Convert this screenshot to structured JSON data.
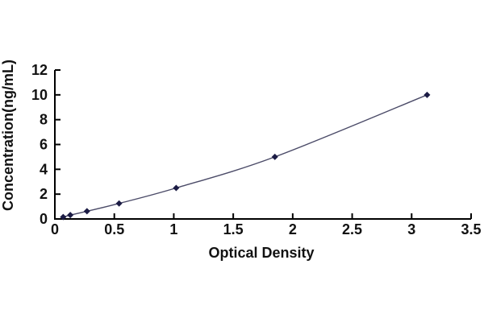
{
  "chart_data": {
    "type": "line",
    "subtype": "xy-scatter-with-smooth-line-and-markers",
    "title": "",
    "xlabel": "Optical Density",
    "ylabel": "Concentration(ng/mL)",
    "xlim": [
      0,
      3.5
    ],
    "ylim": [
      0,
      12
    ],
    "grid": false,
    "legend": "none",
    "x_ticks": [
      0,
      0.5,
      1,
      1.5,
      2,
      2.5,
      3,
      3.5
    ],
    "x_tick_labels": [
      "0",
      "0.5",
      "1",
      "1.5",
      "2",
      "2.5",
      "3",
      "3.5"
    ],
    "y_ticks": [
      0,
      2,
      4,
      6,
      8,
      10,
      12
    ],
    "y_tick_labels": [
      "0",
      "2",
      "4",
      "6",
      "8",
      "10",
      "12"
    ],
    "colors": {
      "background": "#ffffff",
      "axis": "#000000",
      "text": "#121212"
    },
    "series": [
      {
        "name": "standard-curve",
        "marker": "diamond",
        "line_color": "#4b4b68",
        "marker_color": "#1c1c45",
        "points": [
          {
            "x": 0.07,
            "y": 0.156
          },
          {
            "x": 0.13,
            "y": 0.313
          },
          {
            "x": 0.27,
            "y": 0.625
          },
          {
            "x": 0.54,
            "y": 1.25
          },
          {
            "x": 1.02,
            "y": 2.5
          },
          {
            "x": 1.85,
            "y": 5
          },
          {
            "x": 3.13,
            "y": 10
          }
        ]
      }
    ]
  }
}
